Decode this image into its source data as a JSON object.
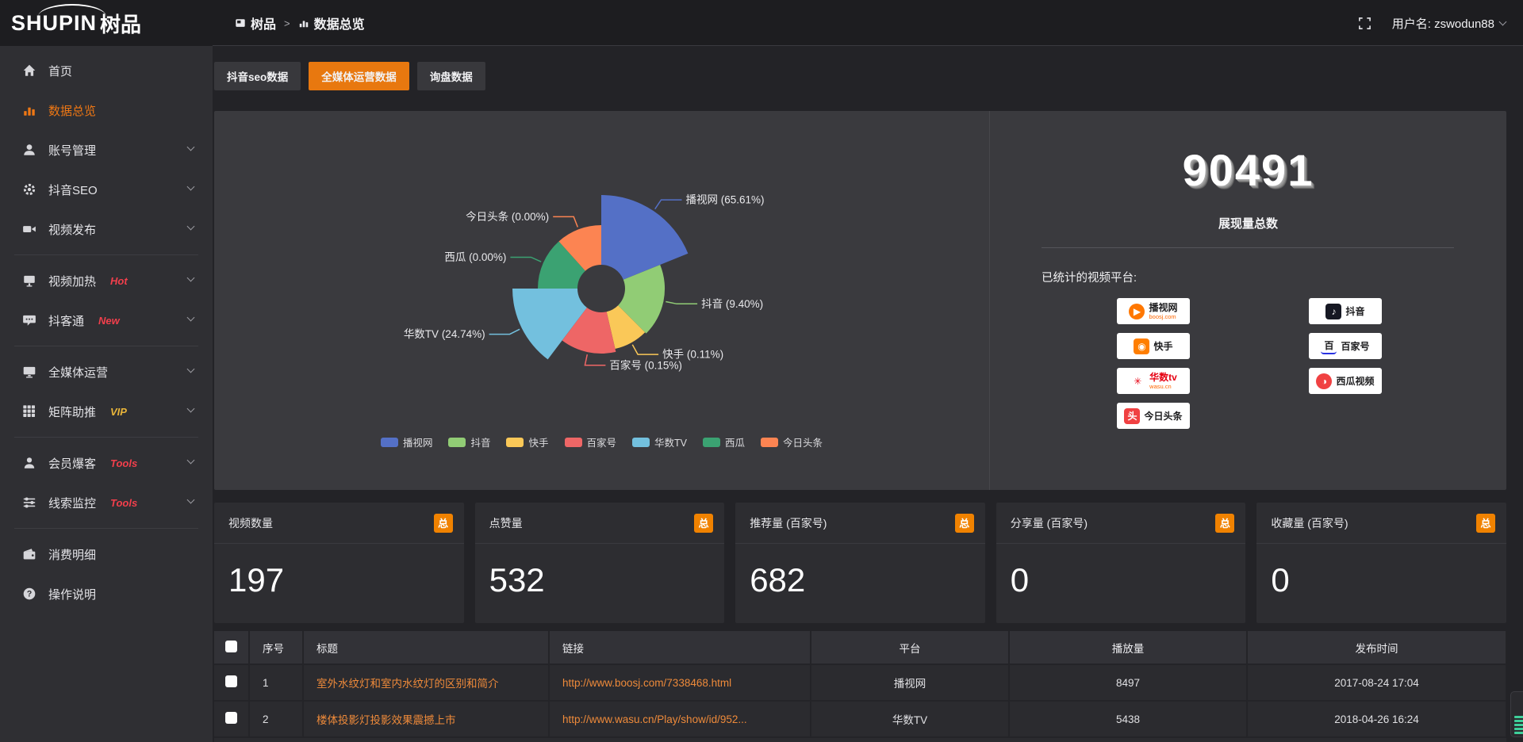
{
  "topbar": {
    "logo": "SHUPIN",
    "logo_cn": "树品",
    "breadcrumb": [
      "树品",
      "数据总览"
    ],
    "username": "用户名: zswodun88"
  },
  "sidebar": {
    "groups": [
      {
        "items": [
          {
            "key": "home",
            "label": "首页",
            "icon": "home"
          },
          {
            "key": "data-overview",
            "label": "数据总览",
            "icon": "chart",
            "active": true
          },
          {
            "key": "account-management",
            "label": "账号管理",
            "icon": "user",
            "chevron": true
          },
          {
            "key": "douyin-seo",
            "label": "抖音SEO",
            "icon": "gear",
            "chevron": true
          },
          {
            "key": "video-publish",
            "label": "视频发布",
            "icon": "video",
            "chevron": true
          }
        ]
      },
      {
        "items": [
          {
            "key": "video-heating",
            "label": "视频加热",
            "icon": "screen",
            "badge": "Hot",
            "badge_color": "#f23f4c",
            "chevron": true
          },
          {
            "key": "douketong",
            "label": "抖客通",
            "icon": "chat",
            "badge": "New",
            "badge_color": "#f23f4c",
            "chevron": true
          }
        ]
      },
      {
        "items": [
          {
            "key": "all-media-operation",
            "label": "全媒体运营",
            "icon": "monitor",
            "chevron": true
          },
          {
            "key": "matrix-boost",
            "label": "矩阵助推",
            "icon": "grid",
            "badge": "VIP",
            "badge_color": "#e9b53a",
            "chevron": true
          }
        ]
      },
      {
        "items": [
          {
            "key": "member-baoke",
            "label": "会员爆客",
            "icon": "person",
            "badge": "Tools",
            "badge_color": "#f23f4c",
            "chevron": true
          },
          {
            "key": "clue-monitor",
            "label": "线索监控",
            "icon": "sliders",
            "badge": "Tools",
            "badge_color": "#f23f4c",
            "chevron": true
          }
        ]
      },
      {
        "items": [
          {
            "key": "consumption-detail",
            "label": "消费明细",
            "icon": "wallet"
          },
          {
            "key": "operation-guide",
            "label": "操作说明",
            "icon": "help"
          }
        ]
      }
    ]
  },
  "tabs": [
    {
      "key": "douyin-seo-data",
      "label": "抖音seo数据",
      "active": false
    },
    {
      "key": "all-media-data",
      "label": "全媒体运营数据",
      "active": true
    },
    {
      "key": "inquiry-data",
      "label": "询盘数据",
      "active": false
    }
  ],
  "chart_data": {
    "type": "pie",
    "variant": "nightingale-rose",
    "title": "",
    "legend_position": "bottom",
    "categories": [
      "播视网",
      "抖音",
      "快手",
      "百家号",
      "华数TV",
      "西瓜",
      "今日头条"
    ],
    "values": [
      65.61,
      9.4,
      0.11,
      0.15,
      24.74,
      0.0,
      0.0
    ],
    "unit": "%",
    "inner_radius": 30,
    "slices": [
      {
        "key": "boosj",
        "name": "播视网",
        "pct": "65.61",
        "color": "#5470c6",
        "a0": 0,
        "a1": 68,
        "r": 118
      },
      {
        "key": "douyin",
        "name": "抖音",
        "pct": "9.40",
        "color": "#91cc75",
        "a0": 68,
        "a1": 135,
        "r": 80
      },
      {
        "key": "kuaishou",
        "name": "快手",
        "pct": "0.11",
        "color": "#fac858",
        "a0": 135,
        "a1": 167,
        "r": 78
      },
      {
        "key": "baijiahao",
        "name": "百家号",
        "pct": "0.15",
        "color": "#ee6666",
        "a0": 167,
        "a1": 217,
        "r": 82
      },
      {
        "key": "wasu",
        "name": "华数TV",
        "pct": "24.74",
        "color": "#73c0de",
        "a0": 217,
        "a1": 270,
        "r": 112
      },
      {
        "key": "xigua",
        "name": "西瓜",
        "pct": "0.00",
        "color": "#3ba272",
        "a0": 270,
        "a1": 318,
        "r": 80
      },
      {
        "key": "toutiao",
        "name": "今日头条",
        "pct": "0.00",
        "color": "#fc8452",
        "a0": 318,
        "a1": 360,
        "r": 80
      }
    ]
  },
  "summary": {
    "total_value": "90491",
    "total_label": "展现量总数",
    "platforms_label": "已统计的视频平台:",
    "platforms": [
      {
        "key": "boosj",
        "name": "播视网",
        "sub": "boosj.com",
        "logo_bg": "#ff7700",
        "logo_glyph": "▶",
        "logo_round": true
      },
      {
        "key": "douyin",
        "name": "抖音",
        "sub": "",
        "logo_bg": "#161823",
        "logo_glyph": "♪",
        "logo_round": false
      },
      {
        "key": "kuaishou",
        "name": "快手",
        "sub": "",
        "logo_bg": "#ff7e00",
        "logo_glyph": "◉",
        "logo_round": false
      },
      {
        "key": "baijiahao",
        "name": "百家号",
        "sub": "",
        "logo_bg": "#ffffff",
        "logo_glyph": "百",
        "logo_fg": "#1b1b1d",
        "logo_accent": "#2932e1",
        "logo_round": false
      },
      {
        "key": "wasu",
        "name": "华数tv",
        "sub": "wasu.cn",
        "logo_bg": "#ffffff",
        "logo_glyph": "✳",
        "logo_fg": "#e60012",
        "logo_round": false,
        "name_color": "#e60012"
      },
      {
        "key": "xigua",
        "name": "西瓜视频",
        "sub": "",
        "logo_bg": "#f04142",
        "logo_glyph": "◑",
        "logo_round": true
      },
      {
        "key": "toutiao",
        "name": "今日头条",
        "sub": "",
        "logo_bg": "#f04142",
        "logo_glyph": "头",
        "logo_round": false
      }
    ]
  },
  "stat_cards": [
    {
      "key": "video-count",
      "label": "视频数量",
      "badge": "总",
      "value": "197"
    },
    {
      "key": "like-count",
      "label": "点赞量",
      "badge": "总",
      "value": "532"
    },
    {
      "key": "recommend-count",
      "label": "推荐量 (百家号)",
      "badge": "总",
      "value": "682"
    },
    {
      "key": "share-count",
      "label": "分享量 (百家号)",
      "badge": "总",
      "value": "0"
    },
    {
      "key": "favorite-count",
      "label": "收藏量 (百家号)",
      "badge": "总",
      "value": "0"
    }
  ],
  "table": {
    "headers": [
      "序号",
      "标题",
      "链接",
      "平台",
      "播放量",
      "发布时间"
    ],
    "rows": [
      {
        "index": "1",
        "title": "室外水纹灯和室内水纹灯的区别和简介",
        "link": "http://www.boosj.com/7338468.html",
        "platform": "播视网",
        "views": "8497",
        "time": "2017-08-24 17:04"
      },
      {
        "index": "2",
        "title": "楼体投影灯投影效果震撼上市",
        "link": "http://www.wasu.cn/Play/show/id/952...",
        "platform": "华数TV",
        "views": "5438",
        "time": "2018-04-26 16:24"
      }
    ]
  },
  "colors": {
    "accent_orange": "#ee7714",
    "active_tab_orange": "#e8780f",
    "link_orange": "#ee8a3a",
    "badge_orange": "#f08200"
  }
}
